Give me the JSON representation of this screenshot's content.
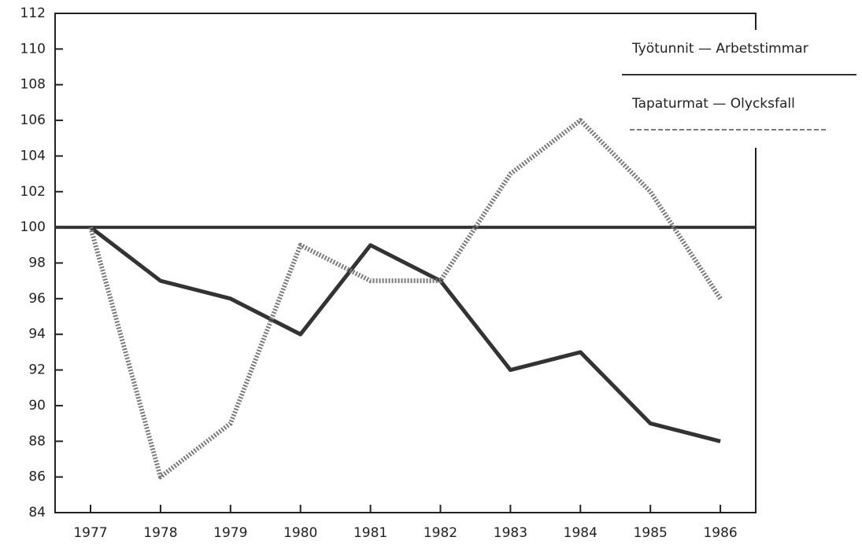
{
  "chart_data": {
    "type": "line",
    "categories": [
      "1977",
      "1978",
      "1979",
      "1980",
      "1981",
      "1982",
      "1983",
      "1984",
      "1985",
      "1986"
    ],
    "series": [
      {
        "name": "Työtunnit — Arbetstimmar",
        "color": "#333333",
        "style": "solid",
        "values": [
          100,
          97,
          96,
          94,
          99,
          97,
          92,
          93,
          89,
          88
        ]
      },
      {
        "name": "Tapaturmat — Olycksfall",
        "color": "#7a7a7a",
        "style": "dashed",
        "values": [
          100,
          86,
          89,
          99,
          97,
          97,
          103,
          106,
          102,
          96
        ]
      }
    ],
    "reference_line": 100,
    "ylim": [
      84,
      112
    ],
    "yticks": [
      84,
      86,
      88,
      90,
      92,
      94,
      96,
      98,
      100,
      102,
      104,
      106,
      108,
      110,
      112
    ],
    "legend": "top-right"
  }
}
